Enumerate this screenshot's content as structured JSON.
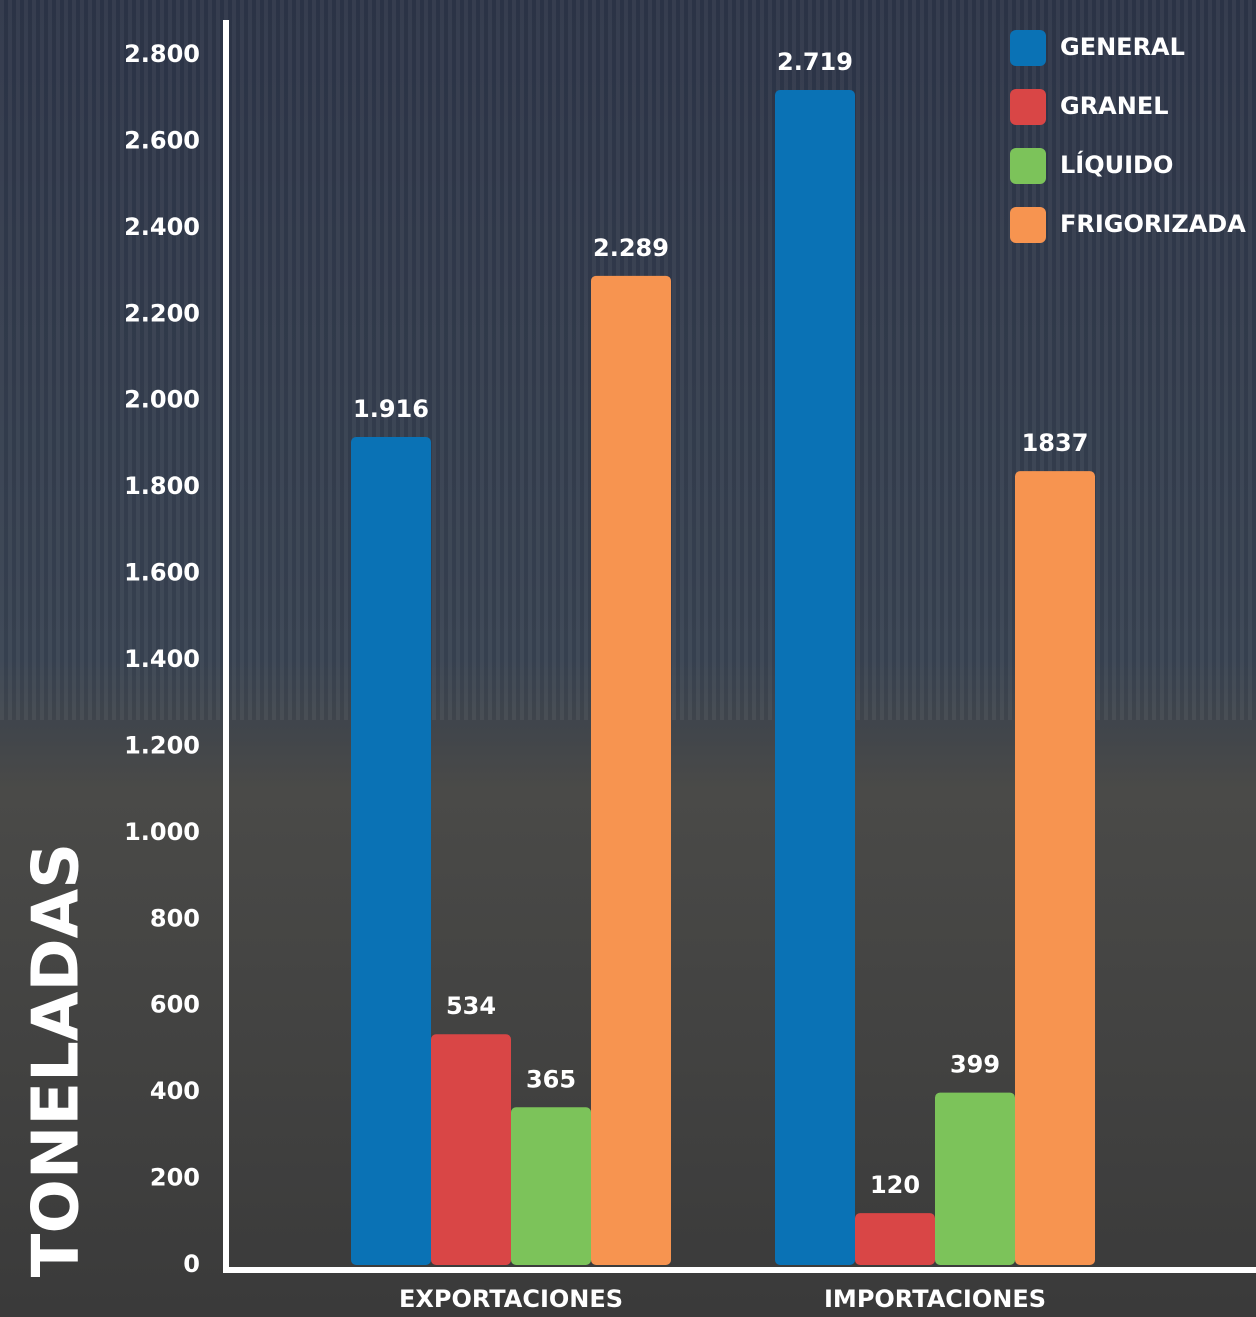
{
  "chart_data": {
    "type": "bar",
    "y_label": "TONELADAS",
    "categories": [
      "EXPORTACIONES",
      "IMPORTACIONES"
    ],
    "series": [
      {
        "name": "GENERAL",
        "color": "#0a72b5",
        "values": [
          1916,
          2719
        ],
        "value_labels": [
          "1.916",
          "2.719"
        ]
      },
      {
        "name": "GRANEL",
        "color": "#d94646",
        "values": [
          534,
          120
        ],
        "value_labels": [
          "534",
          "120"
        ]
      },
      {
        "name": "LÍQUIDO",
        "color": "#7cc35a",
        "values": [
          365,
          399
        ],
        "value_labels": [
          "365",
          "399"
        ]
      },
      {
        "name": "FRIGORIZADA",
        "color": "#f79450",
        "values": [
          2289,
          1837
        ],
        "value_labels": [
          "2.289",
          "1837"
        ]
      }
    ],
    "ylim": [
      0,
      2800
    ],
    "yticks": [
      0,
      200,
      400,
      600,
      800,
      {
        "value": 1000,
        "label": "1.000"
      },
      {
        "value": 1200,
        "label": "1.200"
      },
      {
        "value": 1400,
        "label": "1.400"
      },
      {
        "value": 1600,
        "label": "1.600"
      },
      {
        "value": 1800,
        "label": "1.800"
      },
      {
        "value": 2000,
        "label": "2.000"
      },
      {
        "value": 2200,
        "label": "2.200"
      },
      {
        "value": 2400,
        "label": "2.400"
      },
      {
        "value": 2600,
        "label": "2.600"
      },
      {
        "value": 2800,
        "label": "2.800"
      }
    ],
    "grid": false,
    "legend": "top-right"
  }
}
